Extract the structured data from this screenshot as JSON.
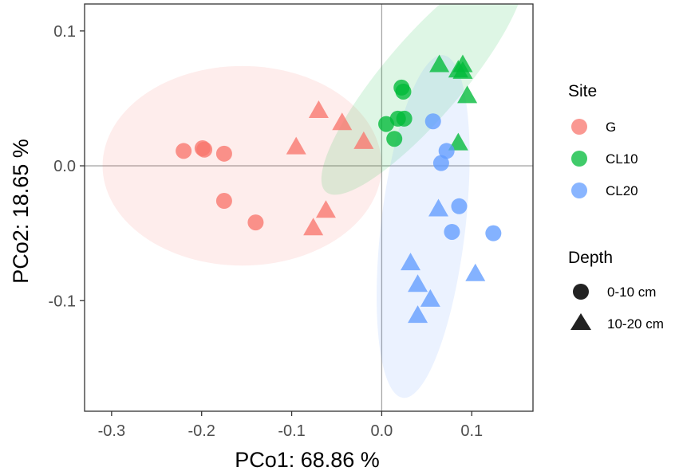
{
  "chart_data": {
    "type": "scatter",
    "xlabel": "PCo1: 68.86 %",
    "ylabel": "PCo2: 18.65 %",
    "xlim": [
      -0.33,
      0.168
    ],
    "ylim": [
      -0.182,
      0.12
    ],
    "xticks": [
      -0.3,
      -0.2,
      -0.1,
      0.0,
      0.1
    ],
    "xtick_labels": [
      "-0.3",
      "-0.2",
      "-0.1",
      "0.0",
      "0.1"
    ],
    "yticks": [
      0.1,
      0.0,
      -0.1
    ],
    "ytick_labels": [
      "0.1",
      "0.0",
      "-0.1"
    ],
    "reference_lines": {
      "x": 0,
      "y": 0
    },
    "grid": false,
    "legend": {
      "position": "right",
      "site_title": "Site",
      "site_entries": [
        {
          "label": "G",
          "color": "#F8766D"
        },
        {
          "label": "CL10",
          "color": "#00BA38"
        },
        {
          "label": "CL20",
          "color": "#619CFF"
        }
      ],
      "depth_title": "Depth",
      "depth_entries": [
        {
          "label": "0-10 cm",
          "shape": "circle"
        },
        {
          "label": "10-20 cm",
          "shape": "triangle"
        }
      ]
    },
    "ellipses": [
      {
        "site": "G",
        "center": [
          -0.155,
          0.0
        ],
        "semi_axes": [
          0.155,
          0.074
        ],
        "rotation_deg": 0
      },
      {
        "site": "CL10",
        "center": [
          0.046,
          0.065
        ],
        "semi_axes": [
          0.137,
          0.033
        ],
        "rotation_deg": 38
      },
      {
        "site": "CL20",
        "center": [
          0.046,
          -0.045
        ],
        "semi_axes": [
          0.129,
          0.046
        ],
        "rotation_deg": 80
      }
    ],
    "series": [
      {
        "site": "G",
        "depth": "0-10 cm",
        "points": [
          [
            -0.22,
            0.011
          ],
          [
            -0.199,
            0.013
          ],
          [
            -0.197,
            0.012
          ],
          [
            -0.175,
            0.009
          ],
          [
            -0.175,
            -0.026
          ],
          [
            -0.14,
            -0.042
          ]
        ]
      },
      {
        "site": "G",
        "depth": "10-20 cm",
        "points": [
          [
            -0.07,
            0.042
          ],
          [
            -0.044,
            0.033
          ],
          [
            -0.095,
            0.015
          ],
          [
            -0.02,
            0.019
          ],
          [
            -0.062,
            -0.032
          ],
          [
            -0.076,
            -0.045
          ]
        ]
      },
      {
        "site": "CL10",
        "depth": "0-10 cm",
        "points": [
          [
            0.022,
            0.058
          ],
          [
            0.024,
            0.055
          ],
          [
            0.005,
            0.031
          ],
          [
            0.018,
            0.035
          ],
          [
            0.025,
            0.035
          ],
          [
            0.014,
            0.02
          ]
        ]
      },
      {
        "site": "CL10",
        "depth": "10-20 cm",
        "points": [
          [
            0.064,
            0.076
          ],
          [
            0.09,
            0.076
          ],
          [
            0.085,
            0.072
          ],
          [
            0.09,
            0.071
          ],
          [
            0.095,
            0.053
          ],
          [
            0.085,
            0.018
          ]
        ]
      },
      {
        "site": "CL20",
        "depth": "0-10 cm",
        "points": [
          [
            0.057,
            0.033
          ],
          [
            0.072,
            0.011
          ],
          [
            0.066,
            0.002
          ],
          [
            0.086,
            -0.03
          ],
          [
            0.078,
            -0.049
          ],
          [
            0.124,
            -0.05
          ]
        ]
      },
      {
        "site": "CL20",
        "depth": "10-20 cm",
        "points": [
          [
            0.063,
            -0.031
          ],
          [
            0.032,
            -0.071
          ],
          [
            0.04,
            -0.087
          ],
          [
            0.054,
            -0.098
          ],
          [
            0.104,
            -0.079
          ],
          [
            0.04,
            -0.11
          ]
        ]
      }
    ]
  }
}
